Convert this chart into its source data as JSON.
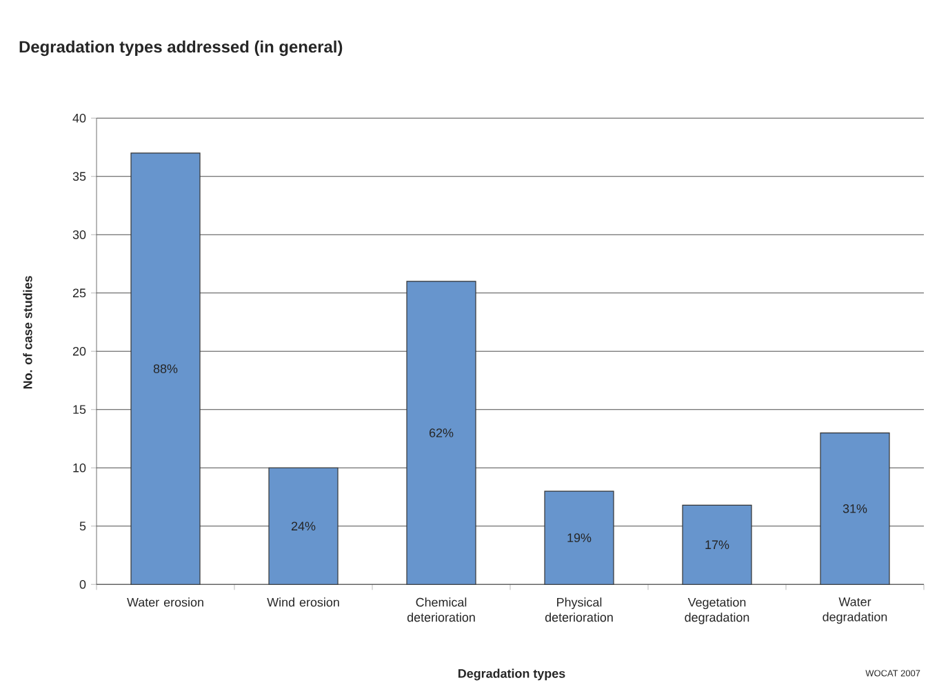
{
  "chart_data": {
    "type": "bar",
    "title": "Degradation types addressed (in general)",
    "xlabel": "Degradation types",
    "ylabel": "No. of case studies",
    "categories": [
      "Water erosion",
      "Wind erosion",
      "Chemical deterioration",
      "Physical deterioration",
      "Vegetation degradation",
      "Water degradation"
    ],
    "values": [
      37,
      10,
      26,
      8,
      6.8,
      13
    ],
    "color": "#6795cd",
    "ylim": [
      0,
      40
    ],
    "yticks": [
      0,
      5,
      10,
      15,
      20,
      25,
      30,
      35,
      40
    ],
    "grid": "y",
    "annotations": [
      "88%",
      "24%",
      "62%",
      "19%",
      "17%",
      "31%",
      "WOCAT 2007"
    ]
  }
}
